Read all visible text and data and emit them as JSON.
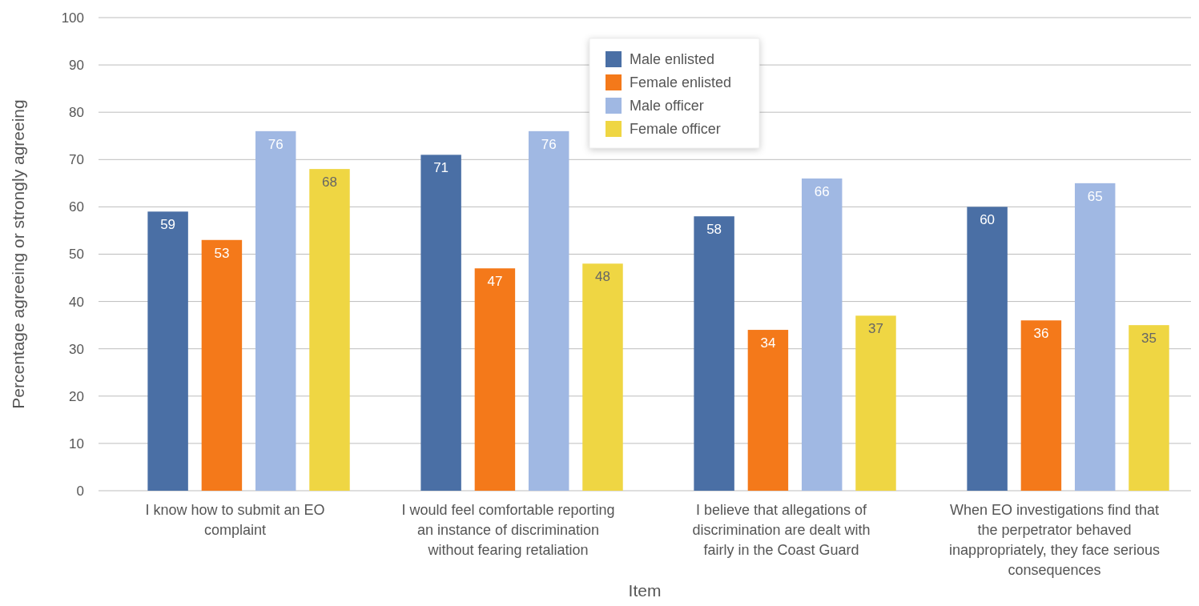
{
  "chart_data": {
    "type": "bar",
    "xlabel": "Item",
    "ylabel": "Percentage agreeing or strongly agreeing",
    "categories": [
      "I know how to submit an EO complaint",
      "I would feel comfortable reporting an instance of discrimination without fearing retaliation",
      "I believe that allegations of discrimination are dealt with fairly in the Coast Guard",
      "When EO investigations find that the perpetrator behaved inappropriately, they face serious consequences"
    ],
    "series": [
      {
        "name": "Male enlisted",
        "color": "#4a6fa5",
        "values": [
          59,
          71,
          58,
          60
        ]
      },
      {
        "name": "Female enlisted",
        "color": "#f4791a",
        "values": [
          53,
          47,
          34,
          36
        ]
      },
      {
        "name": "Male officer",
        "color": "#a0b8e3",
        "values": [
          76,
          76,
          66,
          65
        ]
      },
      {
        "name": "Female officer",
        "color": "#efd643",
        "values": [
          68,
          48,
          37,
          35
        ]
      }
    ],
    "ylim": [
      0,
      100
    ],
    "yticks": [
      0,
      10,
      20,
      30,
      40,
      50,
      60,
      70,
      80,
      90,
      100
    ],
    "grid": "y",
    "legend": "top",
    "data_labels": true
  }
}
